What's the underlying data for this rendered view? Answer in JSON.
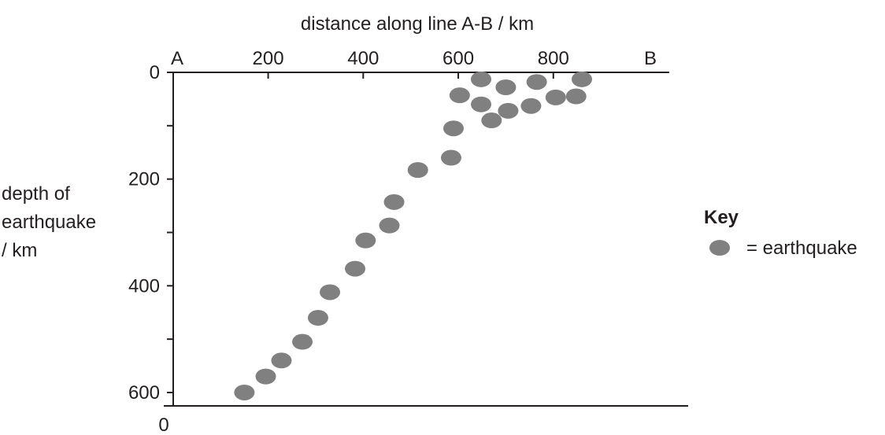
{
  "chart_data": {
    "type": "scatter",
    "xlabel": "distance along line A-B / km",
    "ylabel": [
      "depth of",
      "earthquake",
      "/ km"
    ],
    "x_tick_labels": [
      "200",
      "400",
      "600",
      "800"
    ],
    "x_ticks": [
      200,
      400,
      600,
      800
    ],
    "x_end_labels": {
      "start": "A",
      "end": "B"
    },
    "y_tick_labels": [
      "0",
      "200",
      "400",
      "600"
    ],
    "y_ticks": [
      0,
      200,
      400,
      600
    ],
    "bottom_origin_label": "0",
    "xlim": [
      0,
      1050
    ],
    "ylim": [
      0,
      600
    ],
    "y_inverted": true,
    "grid": false,
    "marker_color": "#808080",
    "legend": {
      "title": "Key",
      "entry": "= earthquake",
      "placement": "right"
    },
    "points": [
      {
        "x": 150,
        "y": 600
      },
      {
        "x": 195,
        "y": 570
      },
      {
        "x": 228,
        "y": 540
      },
      {
        "x": 272,
        "y": 505
      },
      {
        "x": 305,
        "y": 460
      },
      {
        "x": 330,
        "y": 412
      },
      {
        "x": 383,
        "y": 368
      },
      {
        "x": 405,
        "y": 315
      },
      {
        "x": 455,
        "y": 287
      },
      {
        "x": 465,
        "y": 243
      },
      {
        "x": 515,
        "y": 183
      },
      {
        "x": 585,
        "y": 160
      },
      {
        "x": 590,
        "y": 105
      },
      {
        "x": 603,
        "y": 43
      },
      {
        "x": 648,
        "y": 13
      },
      {
        "x": 648,
        "y": 60
      },
      {
        "x": 670,
        "y": 90
      },
      {
        "x": 700,
        "y": 28
      },
      {
        "x": 705,
        "y": 72
      },
      {
        "x": 753,
        "y": 63
      },
      {
        "x": 765,
        "y": 18
      },
      {
        "x": 805,
        "y": 47
      },
      {
        "x": 848,
        "y": 45
      },
      {
        "x": 860,
        "y": 13
      }
    ]
  }
}
